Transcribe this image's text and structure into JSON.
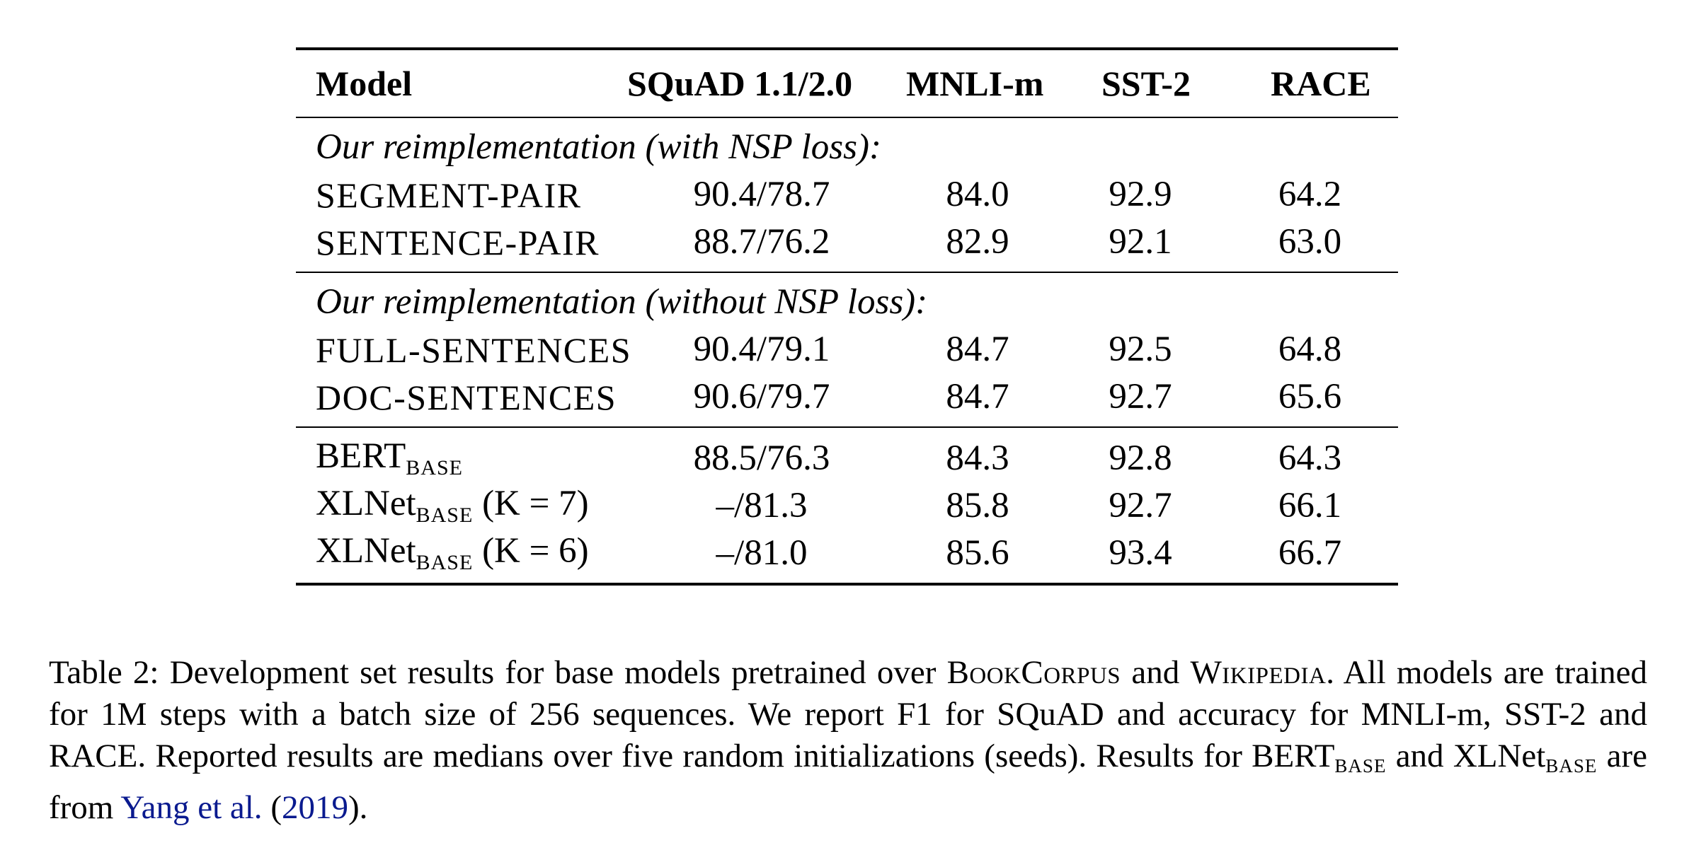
{
  "table": {
    "headers": {
      "model": "Model",
      "squad": "SQuAD 1.1/2.0",
      "mnli": "MNLI-m",
      "sst": "SST-2",
      "race": "RACE"
    },
    "groups": [
      {
        "title": "Our reimplementation (with NSP loss):",
        "rows": [
          {
            "model": "SEGMENT-PAIR",
            "squad": "90.4/78.7",
            "mnli": "84.0",
            "sst": "92.9",
            "race": "64.2"
          },
          {
            "model": "SENTENCE-PAIR",
            "squad": "88.7/76.2",
            "mnli": "82.9",
            "sst": "92.1",
            "race": "63.0"
          }
        ]
      },
      {
        "title": "Our reimplementation (without NSP loss):",
        "rows": [
          {
            "model": "FULL-SENTENCES",
            "squad": "90.4/79.1",
            "mnli": "84.7",
            "sst": "92.5",
            "race": "64.8"
          },
          {
            "model": "DOC-SENTENCES",
            "squad": "90.6/79.7",
            "mnli": "84.7",
            "sst": "92.7",
            "race": "65.6"
          }
        ]
      }
    ],
    "baselines": [
      {
        "model": "BERT",
        "model_sub": "BASE",
        "model_suffix": "",
        "squad": "88.5/76.3",
        "mnli": "84.3",
        "sst": "92.8",
        "race": "64.3"
      },
      {
        "model": "XLNet",
        "model_sub": "BASE",
        "model_suffix": " (K = 7)",
        "squad": "–/81.3",
        "mnli": "85.8",
        "sst": "92.7",
        "race": "66.1"
      },
      {
        "model": "XLNet",
        "model_sub": "BASE",
        "model_suffix": " (K = 6)",
        "squad": "–/81.0",
        "mnli": "85.6",
        "sst": "93.4",
        "race": "66.7"
      }
    ]
  },
  "caption": {
    "label": "Table 2",
    "p1": ": Development set results for base models pretrained over ",
    "bookcorpus": "BookCorpus",
    "and": " and ",
    "wikipedia": "Wikipedia",
    "p2": ". All models are trained for 1M steps with a batch size of 256 sequences.  We report F1 for SQuAD and accuracy for MNLI-m, SST-2 and RACE. Reported results are medians over five random initializations (seeds). Results for ",
    "bert": "BERT",
    "base1": "BASE",
    "and2": " and ",
    "xlnet": "XLNet",
    "base2": "BASE",
    "p3": " are from ",
    "cite_authors": "Yang et al.",
    "cite_open": " (",
    "cite_year": "2019",
    "cite_close": ")."
  }
}
